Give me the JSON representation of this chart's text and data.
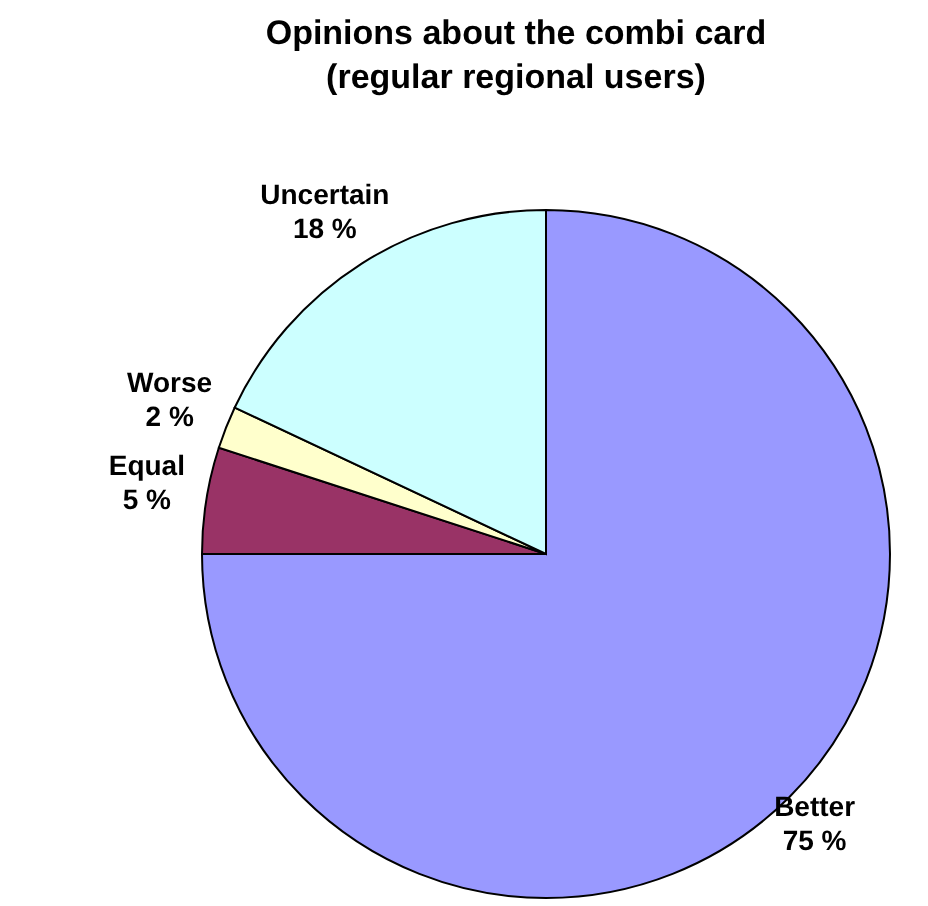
{
  "chart_data": {
    "type": "pie",
    "title": "Opinions about the combi card\n(regular regional users)",
    "categories": [
      "Better",
      "Equal",
      "Worse",
      "Uncertain"
    ],
    "values": [
      75,
      5,
      2,
      18
    ],
    "colors": [
      "#9999ff",
      "#993366",
      "#ffffcc",
      "#ccffff"
    ],
    "value_labels": [
      "75 %",
      "5 %",
      "2 %",
      "18 %"
    ],
    "legend": false
  }
}
